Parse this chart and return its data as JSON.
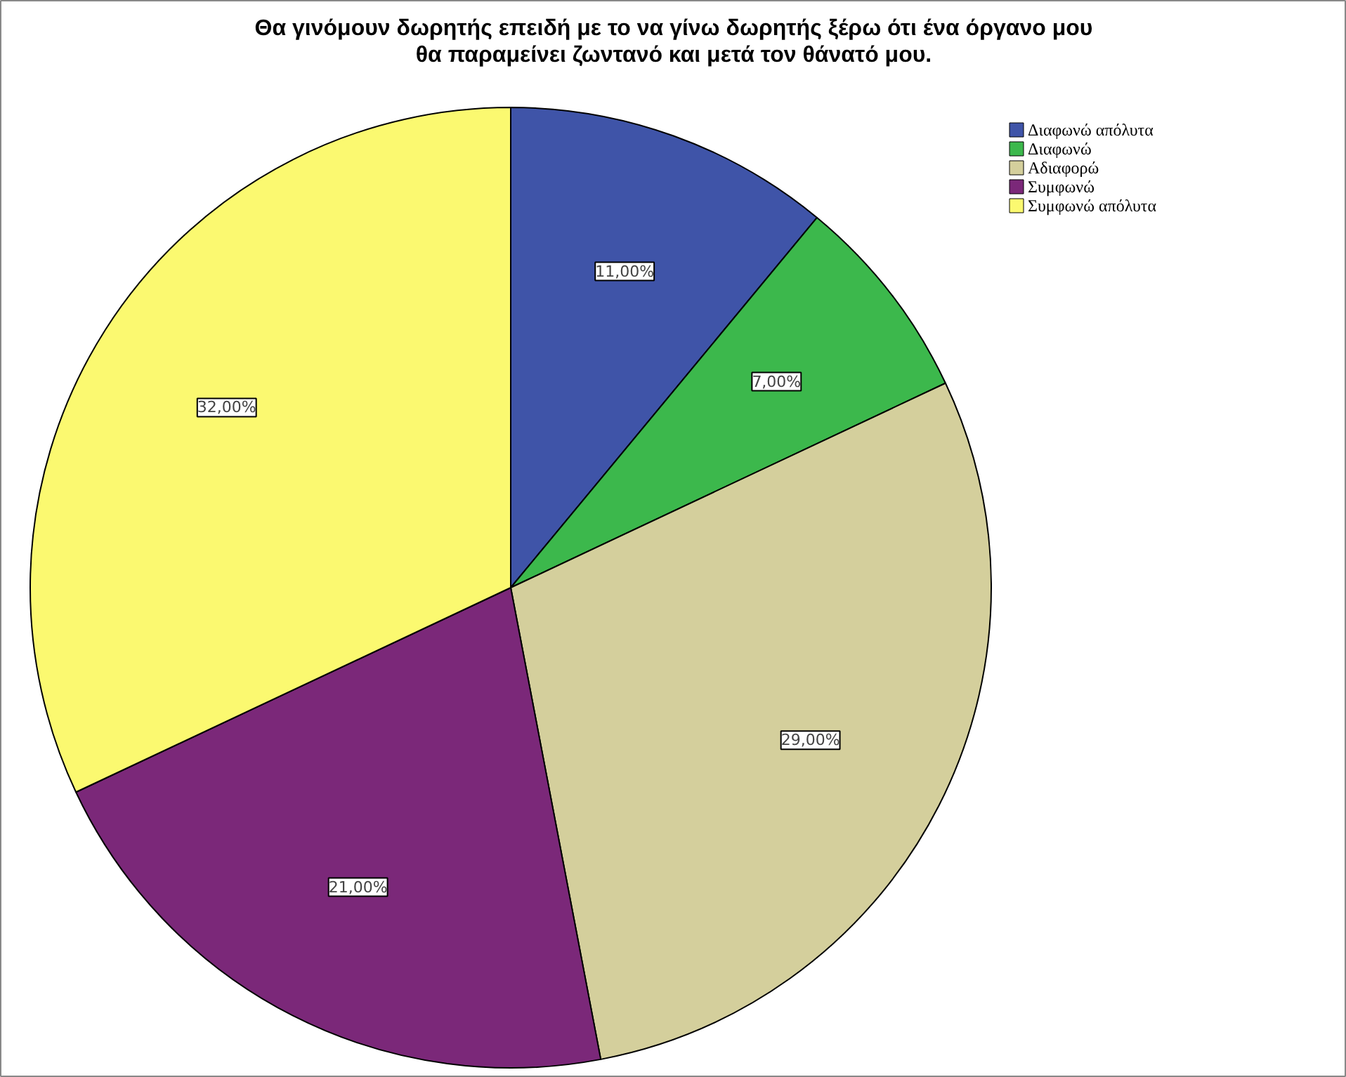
{
  "chart_data": {
    "type": "pie",
    "title": "Θα γινόμουν δωρητής επειδή με το να γίνω δωρητής ξέρω ότι ένα όργανο μου θα παραμείνει ζωντανό και μετά τον θάνατό μου.",
    "categories": [
      "Διαφωνώ απόλυτα",
      "Διαφωνώ",
      "Αδιαφορώ",
      "Συμφωνώ",
      "Συμφωνώ απόλυτα"
    ],
    "values": [
      11,
      7,
      29,
      21,
      32
    ],
    "value_labels": [
      "11,00%",
      "7,00%",
      "29,00%",
      "21,00%",
      "32,00%"
    ],
    "colors": [
      "#3f54a8",
      "#3cb84c",
      "#d4cf9c",
      "#7b2879",
      "#fbf970"
    ],
    "legend": "top right"
  }
}
